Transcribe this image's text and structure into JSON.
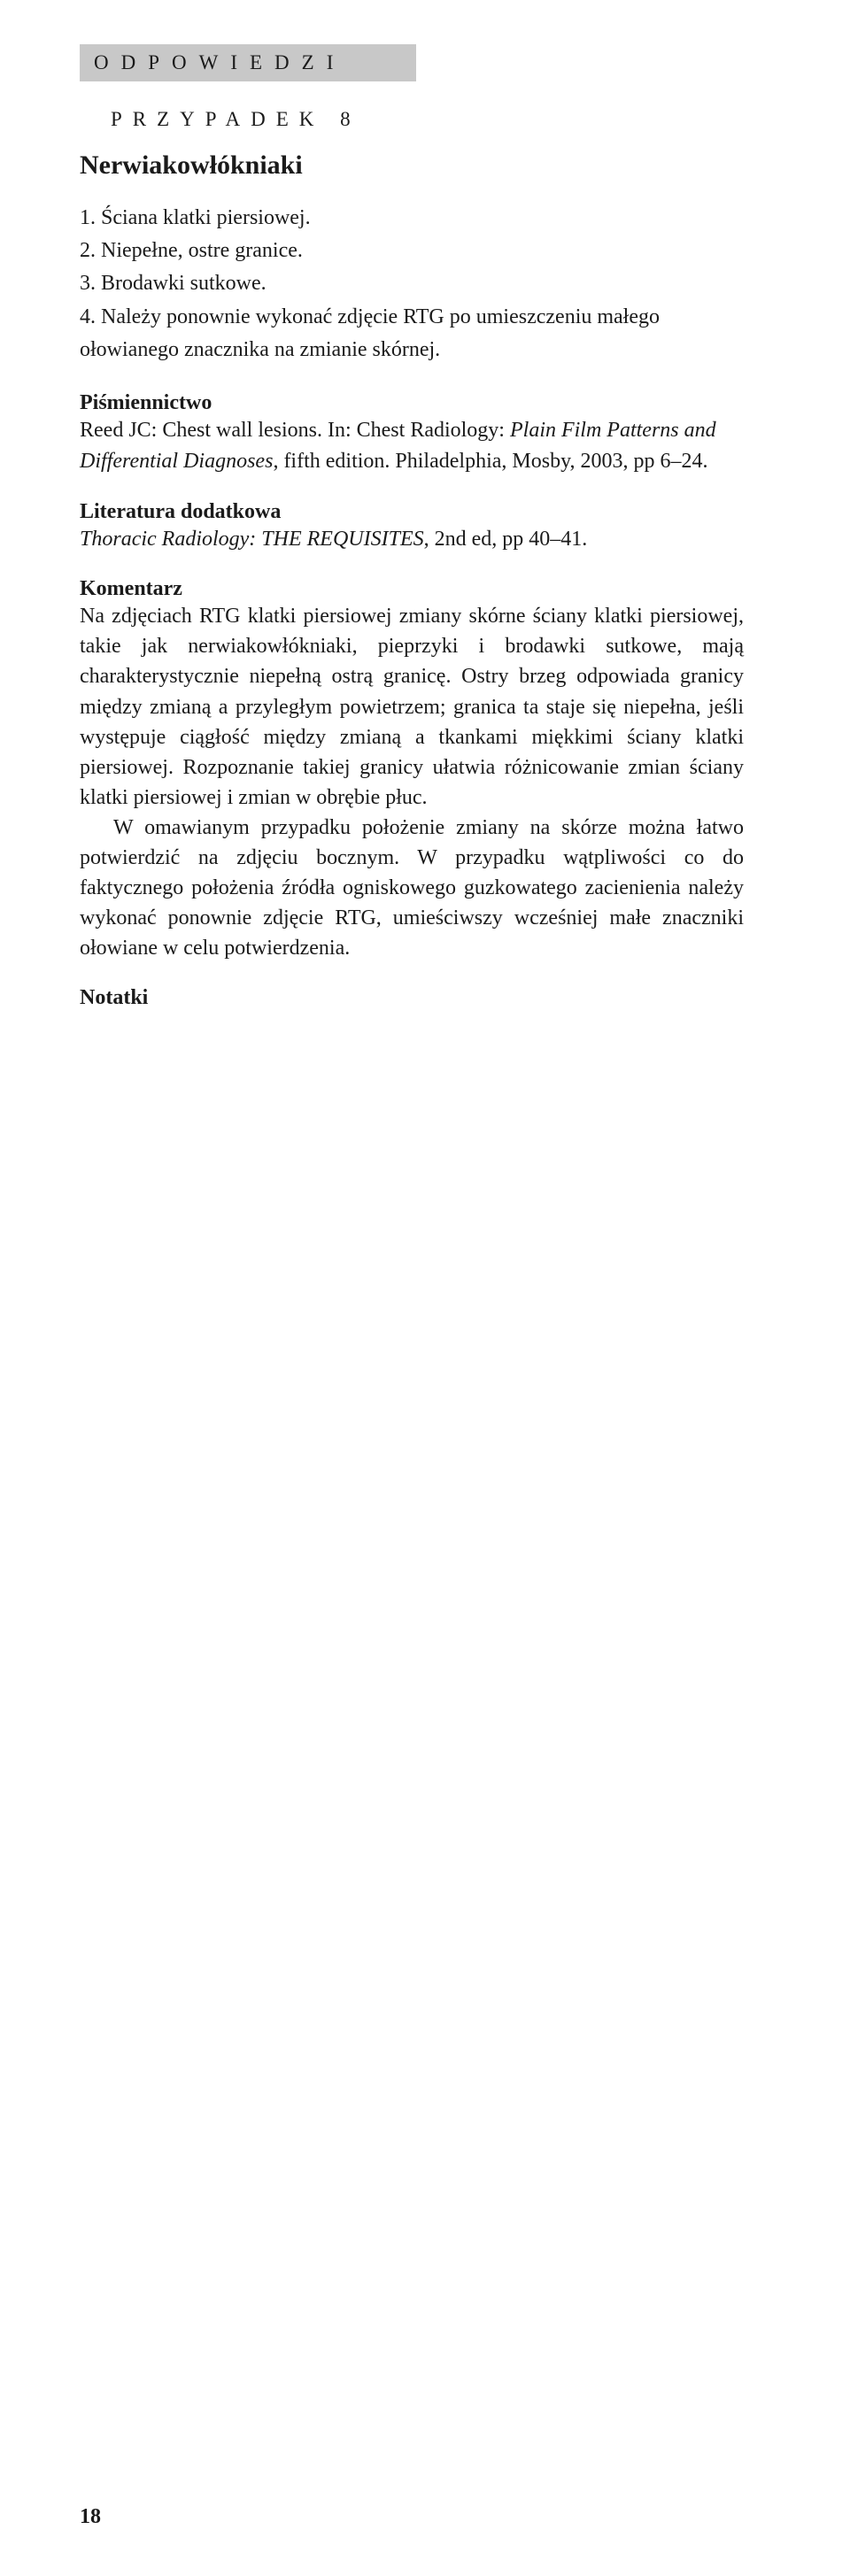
{
  "header": {
    "label": "ODPOWIEDZI"
  },
  "caseLabel": "PRZYPADEK 8",
  "title": "Nerwiakowłókniaki",
  "answers": [
    "1. Ściana klatki piersiowej.",
    "2. Niepełne, ostre granice.",
    "3. Brodawki sutkowe.",
    "4. Należy ponownie wykonać zdjęcie RTG po umieszczeniu małego ołowianego znacznika na zmianie skórnej."
  ],
  "bibliography": {
    "heading": "Piśmiennictwo",
    "prefix": "Reed JC: Chest wall lesions. In: Chest Radiology: ",
    "italic": "Plain Film Patterns and Differential Diagnoses",
    "suffix": ", fifth edition. Philadelphia, Mosby, 2003, pp 6–24."
  },
  "additional": {
    "heading": "Literatura dodatkowa",
    "italic": "Thoracic Radiology: THE REQUISITES",
    "suffix": ", 2nd ed, pp 40–41."
  },
  "commentary": {
    "heading": "Komentarz",
    "p1": "Na zdjęciach RTG klatki piersiowej zmiany skórne ściany klatki piersiowej, takie jak nerwiakowłókniaki, pieprzyki i brodawki sutkowe, mają charakterystycznie niepełną ostrą granicę. Ostry brzeg odpowiada granicy między zmianą a przyległym powietrzem; granica ta staje się niepełna, jeśli występuje ciągłość między zmianą a tkankami miękkimi ściany klatki piersiowej. Rozpoznanie takiej granicy ułatwia różnicowanie zmian ściany klatki piersiowej i zmian w obrębie płuc.",
    "p2": "W omawianym przypadku położenie zmiany na skórze można łatwo potwierdzić na zdjęciu bocznym. W przypadku wątpliwości co do faktycznego położenia źródła ogniskowego guzkowatego zacienienia należy wykonać ponownie zdjęcie RTG, umieściwszy wcześniej małe znaczniki ołowiane w celu potwierdzenia."
  },
  "notes": "Notatki",
  "pageNumber": "18"
}
